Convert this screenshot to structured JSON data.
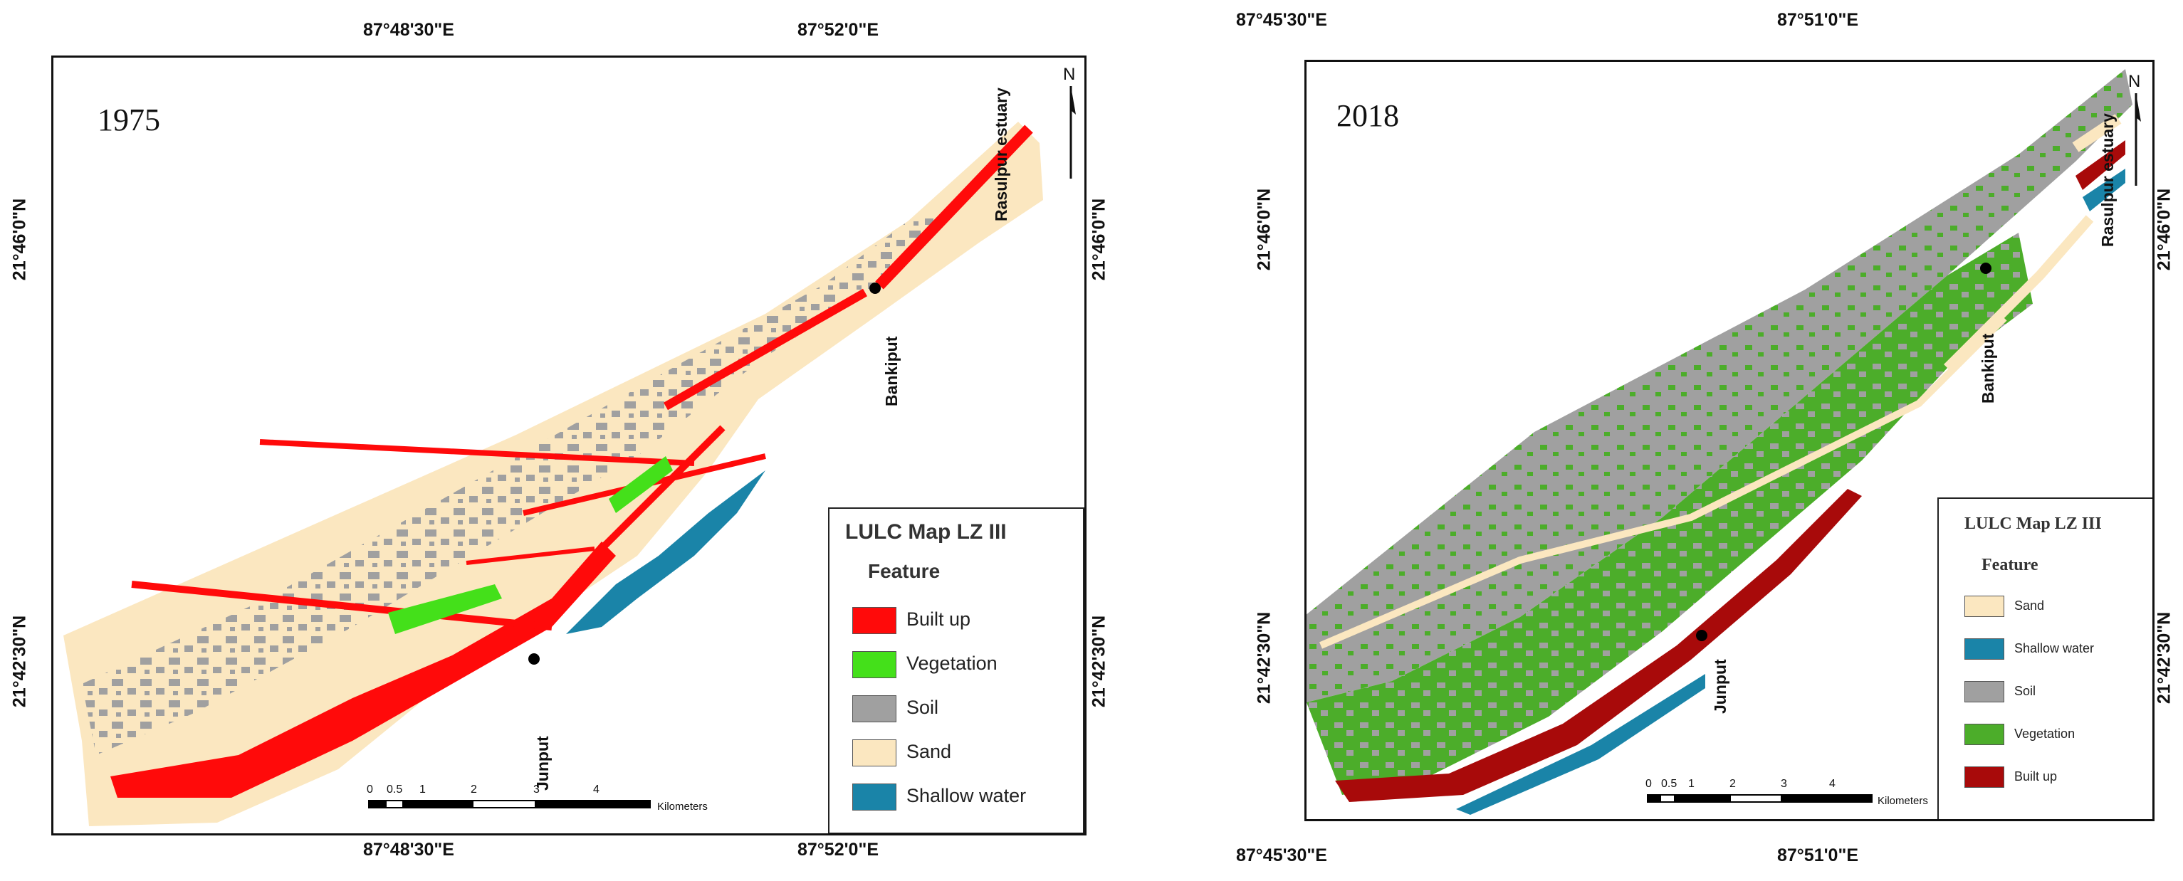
{
  "maps": [
    {
      "year": "1975",
      "top_coords": [
        "87°48'30\"E",
        "87°52'0\"E"
      ],
      "bottom_coords": [
        "87°48'30\"E",
        "87°52'0\"E"
      ],
      "left_coords": [
        "21°46'0\"N",
        "21°42'30\"N"
      ],
      "right_coords": [
        "21°46'0\"N",
        "21°42'30\"N"
      ],
      "places": [
        "Rasulpur estuary",
        "Bankiput",
        "Junput"
      ],
      "north": "N",
      "legend": {
        "title": "LULC Map LZ III",
        "subtitle": "Feature",
        "items": [
          {
            "label": "Built up",
            "color": "#ff0a0a"
          },
          {
            "label": "Vegetation",
            "color": "#44e01a"
          },
          {
            "label": "Soil",
            "color": "#a0a0a0"
          },
          {
            "label": "Sand",
            "color": "#fbe7c0"
          },
          {
            "label": "Shallow water",
            "color": "#1a84a8"
          }
        ]
      },
      "scale": {
        "ticks": [
          "0",
          "0.5",
          "1",
          "2",
          "3",
          "4"
        ],
        "unit": "Kilometers"
      }
    },
    {
      "year": "2018",
      "top_coords": [
        "87°45'30\"E",
        "87°51'0\"E"
      ],
      "bottom_coords": [
        "87°45'30\"E",
        "87°51'0\"E"
      ],
      "left_coords": [
        "21°46'0\"N",
        "21°42'30\"N"
      ],
      "right_coords": [
        "21°46'0\"N",
        "21°42'30\"N"
      ],
      "places": [
        "Rasulpur estuary",
        "Bankiput",
        "Junput"
      ],
      "north": "N",
      "legend": {
        "title": "LULC Map LZ III",
        "subtitle": "Feature",
        "items": [
          {
            "label": "Sand",
            "color": "#fbe7c0"
          },
          {
            "label": "Shallow water",
            "color": "#1a84a8"
          },
          {
            "label": "Soil",
            "color": "#a0a0a0"
          },
          {
            "label": "Vegetation",
            "color": "#4cad2a"
          },
          {
            "label": "Built up",
            "color": "#a80a0a"
          }
        ]
      },
      "scale": {
        "ticks": [
          "0",
          "0.5",
          "1",
          "2",
          "3",
          "4"
        ],
        "unit": "Kilometers"
      }
    }
  ]
}
